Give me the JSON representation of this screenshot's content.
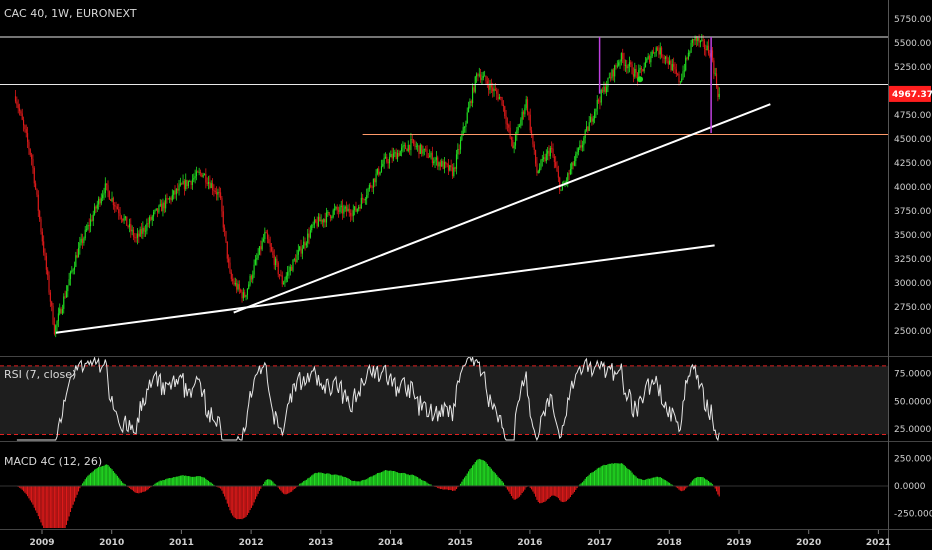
{
  "header": {
    "symbol": "CAC 40, 1W, EURONEXT"
  },
  "rsi_panel": {
    "label": "RSI (7, close)"
  },
  "macd_panel": {
    "label": "MACD 4C (12, 26)"
  },
  "price_badge": {
    "value": "4967.37",
    "color": "#ff1e1e"
  },
  "colors": {
    "up": "#22dd22",
    "down": "#dd1a1a",
    "hline": "#e8e8e8",
    "support": "#ff9a6a",
    "trend": "#ffffff",
    "vline": "#c040e0",
    "rsi": "#e6e6e6",
    "rsi_band": "#e02020"
  },
  "chart_data": [
    {
      "type": "candlestick",
      "x_axis": {
        "labels": [
          "2009",
          "2010",
          "2011",
          "2012",
          "2013",
          "2014",
          "2015",
          "2016",
          "2017",
          "2018",
          "2019",
          "2020",
          "2021"
        ]
      },
      "y_axis": {
        "ticks": [
          2500,
          2750,
          3000,
          3250,
          3500,
          3750,
          4000,
          4250,
          4500,
          4750,
          5000,
          5250,
          5500,
          5750
        ],
        "tick_labels": [
          "2500.00",
          "2750.00",
          "3000.00",
          "3250.00",
          "3500.00",
          "3750.00",
          "4000.00",
          "4250.00",
          "4500.00",
          "4750.00",
          "5000.00",
          "5250.00",
          "5500.00",
          "5750.00"
        ],
        "range": [
          2300,
          5800
        ]
      },
      "last_price": 4967.37,
      "price_path": [
        [
          2008.6,
          5000
        ],
        [
          2008.85,
          4300
        ],
        [
          2009.05,
          3200
        ],
        [
          2009.18,
          2500
        ],
        [
          2009.5,
          3300
        ],
        [
          2009.9,
          4000
        ],
        [
          2010.35,
          3450
        ],
        [
          2010.6,
          3700
        ],
        [
          2011.0,
          4000
        ],
        [
          2011.3,
          4150
        ],
        [
          2011.55,
          3900
        ],
        [
          2011.7,
          3050
        ],
        [
          2011.9,
          2850
        ],
        [
          2012.2,
          3500
        ],
        [
          2012.45,
          3000
        ],
        [
          2012.9,
          3600
        ],
        [
          2013.2,
          3750
        ],
        [
          2013.5,
          3750
        ],
        [
          2013.9,
          4250
        ],
        [
          2014.3,
          4450
        ],
        [
          2014.6,
          4300
        ],
        [
          2014.9,
          4150
        ],
        [
          2015.25,
          5200
        ],
        [
          2015.6,
          4900
        ],
        [
          2015.75,
          4400
        ],
        [
          2015.95,
          4900
        ],
        [
          2016.1,
          4150
        ],
        [
          2016.3,
          4400
        ],
        [
          2016.45,
          3950
        ],
        [
          2016.75,
          4450
        ],
        [
          2016.95,
          4850
        ],
        [
          2017.3,
          5350
        ],
        [
          2017.55,
          5150
        ],
        [
          2017.8,
          5450
        ],
        [
          2017.95,
          5350
        ],
        [
          2018.15,
          5100
        ],
        [
          2018.35,
          5550
        ],
        [
          2018.6,
          5400
        ],
        [
          2018.7,
          4967.37
        ]
      ],
      "horizontal_lines": [
        {
          "kind": "resistance",
          "price": 5560
        },
        {
          "kind": "level",
          "price": 5065
        },
        {
          "kind": "support",
          "price": 4545,
          "from_x": 2013.6
        }
      ],
      "trendlines": [
        {
          "from": [
            2009.2,
            2480
          ],
          "to": [
            2018.65,
            3390
          ]
        },
        {
          "from": [
            2011.75,
            2690
          ],
          "to": [
            2019.45,
            4860
          ]
        }
      ],
      "vertical_markers": [
        {
          "x": 2017.0,
          "from": 5560,
          "to": 4970
        },
        {
          "x": 2018.6,
          "from": 5560,
          "to": 4560
        }
      ],
      "markers": [
        {
          "x": 2017.58,
          "price": 5120
        }
      ]
    },
    {
      "type": "line",
      "name": "RSI (7, close)",
      "y_axis": {
        "ticks": [
          25,
          50,
          75
        ],
        "tick_labels": [
          "25.0000",
          "50.0000",
          "75.0000"
        ],
        "range": [
          15,
          90
        ]
      },
      "bands": [
        82,
        20
      ],
      "band_area": [
        20,
        82
      ]
    },
    {
      "type": "bar",
      "name": "MACD 4C (12, 26)",
      "y_axis": {
        "ticks": [
          250,
          0,
          -250
        ],
        "tick_labels": [
          "250.0000",
          "0.0000",
          "-250.0000"
        ],
        "range": [
          -380,
          380
        ]
      }
    }
  ]
}
